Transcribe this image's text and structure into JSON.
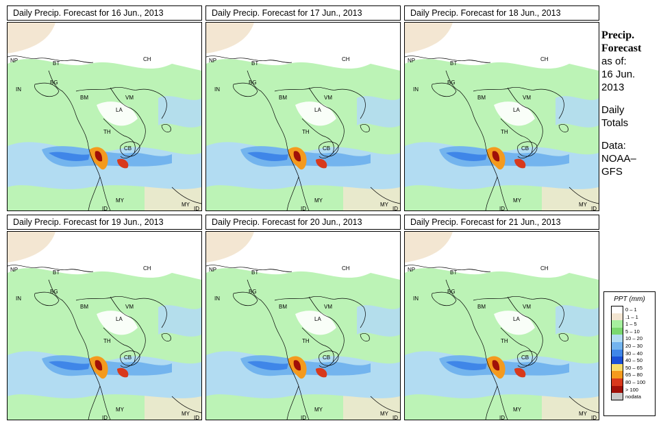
{
  "panels": [
    {
      "title": "Daily Precip. Forecast for  16 Jun., 2013"
    },
    {
      "title": "Daily Precip. Forecast for  17 Jun., 2013"
    },
    {
      "title": "Daily Precip. Forecast for  18 Jun., 2013"
    },
    {
      "title": "Daily Precip. Forecast for  19 Jun., 2013"
    },
    {
      "title": "Daily Precip. Forecast for  20 Jun., 2013"
    },
    {
      "title": "Daily Precip. Forecast for  21 Jun., 2013"
    }
  ],
  "map_labels": {
    "np": "NP",
    "bt": "BT",
    "bg": "BG",
    "in": "IN",
    "ch": "CH",
    "bm": "BM",
    "vm": "VM",
    "la": "LA",
    "th": "TH",
    "cb": "CB",
    "my": "MY",
    "id": "ID"
  },
  "side": {
    "heading1": "Precip.",
    "heading2": "Forecast",
    "asof": "as of:",
    "date1": "16 Jun.",
    "date2": "2013",
    "daily1": "Daily",
    "daily2": "Totals",
    "data1": "Data:",
    "data2": "NOAA–",
    "data3": "GFS"
  },
  "legend": {
    "title": "PPT (mm)",
    "items": [
      {
        "label": "0 – 1",
        "color": "#ffffff"
      },
      {
        "label": ".1 – 1",
        "color": "#f3e6d2"
      },
      {
        "label": "1 – 5",
        "color": "#a6ef9e"
      },
      {
        "label": "5 – 10",
        "color": "#7ad86e"
      },
      {
        "label": "10 – 20",
        "color": "#b2dcf2"
      },
      {
        "label": "20 – 30",
        "color": "#73b4ee"
      },
      {
        "label": "30 – 40",
        "color": "#3f86e8"
      },
      {
        "label": "40 – 50",
        "color": "#1a4fd6"
      },
      {
        "label": "50 – 65",
        "color": "#f7dc6a"
      },
      {
        "label": "65 – 80",
        "color": "#f49a1e"
      },
      {
        "label": "80 – 100",
        "color": "#d8391c"
      },
      {
        "label": "> 100",
        "color": "#a01008"
      },
      {
        "label": "nodata",
        "color": "#c8c8c8"
      }
    ]
  }
}
